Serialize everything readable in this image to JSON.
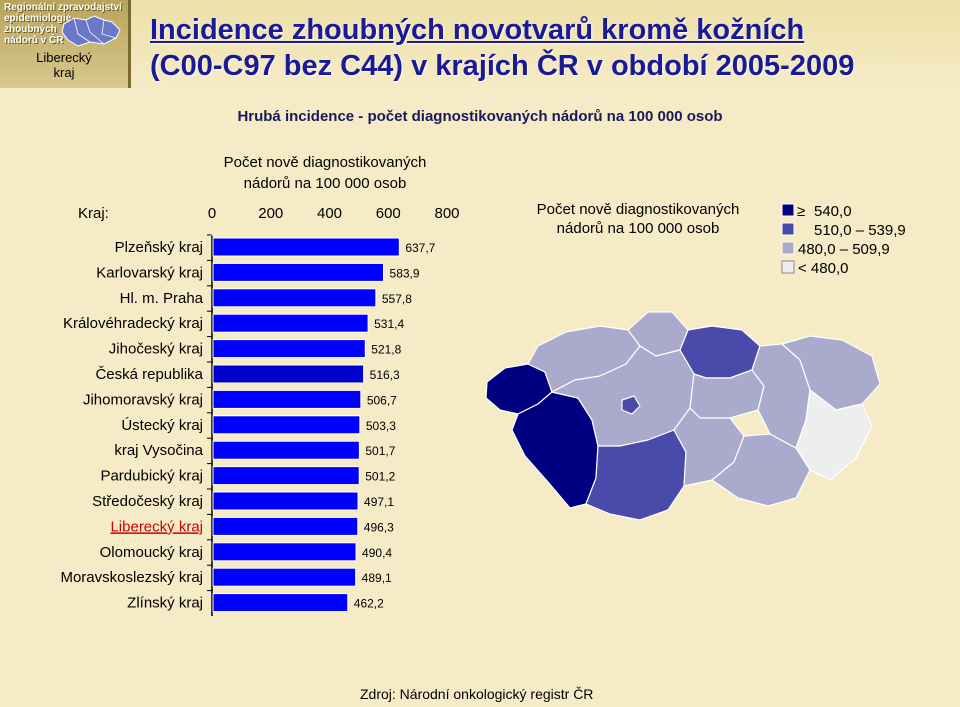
{
  "header": {
    "logo_line1": "Regionální zpravodajství",
    "logo_line2": "epidemiologie",
    "logo_line3": "zhoubných",
    "logo_line4": "nádorů v ČR",
    "region_name_line1": "Liberecký",
    "region_name_line2": "kraj",
    "title_line1": "Incidence zhoubných novotvarů kromě kožních",
    "title_line2": "(C00-C97 bez C44) v krajích ČR v období 2005-2009"
  },
  "subtitle": "Hrubá incidence - počet diagnostikovaných nádorů na 100 000 osob",
  "source": "Zdroj: Národní onkologický registr ČR",
  "colors": {
    "bar": "#0000ff",
    "bar_highlight": "#0000cc",
    "highlight_label": "#cc0000",
    "map_1": "#000080",
    "map_2": "#4a4aaa",
    "map_3": "#aaaacc",
    "map_4": "#eeeeee"
  },
  "chart_data": {
    "type": "bar",
    "orientation": "horizontal",
    "title_line1": "Počet nově diagnostikovaných",
    "title_line2": "nádorů na 100 000 osob",
    "category_header": "Kraj:",
    "xlim": [
      0,
      800
    ],
    "x_ticks": [
      "0",
      "200",
      "400",
      "600",
      "800"
    ],
    "categories": [
      "Plzeňský kraj",
      "Karlovarský kraj",
      "Hl. m. Praha",
      "Královéhradecký kraj",
      "Jihočeský kraj",
      "Česká republika",
      "Jihomoravský kraj",
      "Ústecký kraj",
      "kraj Vysočina",
      "Pardubický kraj",
      "Středočeský kraj",
      "Liberecký kraj",
      "Olomoucký kraj",
      "Moravskoslezský kraj",
      "Zlínský kraj"
    ],
    "values": [
      637.7,
      583.9,
      557.8,
      531.4,
      521.8,
      516.3,
      506.7,
      503.3,
      501.7,
      501.2,
      497.1,
      496.3,
      490.4,
      489.1,
      462.2
    ],
    "value_labels": [
      "637,7",
      "583,9",
      "557,8",
      "531,4",
      "521,8",
      "516,3",
      "506,7",
      "503,3",
      "501,7",
      "501,2",
      "497,1",
      "496,3",
      "490,4",
      "489,1",
      "462,2"
    ],
    "highlight_category": "Česká republika",
    "selected_category": "Liberecký kraj"
  },
  "map": {
    "legend_title_line1": "Počet nově diagnostikovaných",
    "legend_title_line2": "nádorů na 100 000 osob",
    "legend": [
      {
        "symbol": "≥",
        "label": "540,0"
      },
      {
        "label": "510,0 – 539,9"
      },
      {
        "label": "480,0 – 509,9"
      },
      {
        "label": "< 480,0"
      }
    ]
  }
}
